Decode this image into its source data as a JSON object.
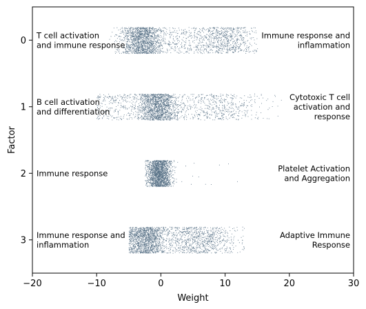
{
  "chart_data": {
    "type": "scatter",
    "style": "strip-plot",
    "xlabel": "Weight",
    "ylabel": "Factor",
    "xlim": [
      -20,
      30
    ],
    "ylim": [
      3.5,
      -0.5
    ],
    "x_ticks": [
      -20,
      -10,
      0,
      10,
      20,
      30
    ],
    "x_tick_labels": [
      "−20",
      "−10",
      "0",
      "10",
      "20",
      "30"
    ],
    "y_ticks": [
      0,
      1,
      2,
      3
    ],
    "y_tick_labels": [
      "0",
      "1",
      "2",
      "3"
    ],
    "grid": false,
    "point_color": "#3d5a73",
    "factors": [
      {
        "factor": 0,
        "left_label": "T cell activation\nand immune response",
        "right_label": "Immune response and\ninflammation",
        "range": [
          -10,
          15
        ],
        "clusters": [
          {
            "center": -3,
            "sd": 1.6,
            "n": 1400
          },
          {
            "center": 10,
            "sd": 2.2,
            "n": 650
          },
          {
            "center": 3,
            "sd": 3.5,
            "n": 400
          }
        ]
      },
      {
        "factor": 1,
        "left_label": "B cell activation\nand differentiation",
        "right_label": "Cytotoxic T cell\nactivation and\nresponse",
        "range": [
          -10,
          19
        ],
        "clusters": [
          {
            "center": -0.5,
            "sd": 1.6,
            "n": 1500
          },
          {
            "center": -7,
            "sd": 2.2,
            "n": 250
          },
          {
            "center": 9,
            "sd": 3.5,
            "n": 500
          }
        ]
      },
      {
        "factor": 2,
        "left_label": "Immune response",
        "right_label": "Platelet Activation\nand Aggregation",
        "range": [
          -2.5,
          12
        ],
        "clusters": [
          {
            "center": -0.3,
            "sd": 0.9,
            "n": 1800
          },
          {
            "center": 6,
            "sd": 3.5,
            "n": 12
          }
        ]
      },
      {
        "factor": 3,
        "left_label": "Immune response and\ninflammation",
        "right_label": "Adaptive Immune\nResponse",
        "range": [
          -5,
          13
        ],
        "clusters": [
          {
            "center": -2.5,
            "sd": 1.5,
            "n": 1300
          },
          {
            "center": 6.5,
            "sd": 2.6,
            "n": 700
          },
          {
            "center": 2,
            "sd": 2.5,
            "n": 300
          }
        ]
      }
    ]
  }
}
